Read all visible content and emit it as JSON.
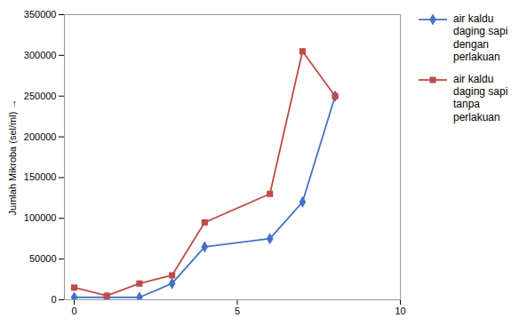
{
  "chart_data": {
    "type": "line",
    "ylabel": "Jumlah Mikroba (sel/ml)",
    "x": [
      0,
      1,
      2,
      3,
      4,
      6,
      7,
      8
    ],
    "series": [
      {
        "name": "air kaldu\ndaging sapi\ndengan\nperlakuan",
        "color": "#4472C4",
        "marker": "diamond",
        "values": [
          3000,
          3000,
          3000,
          20000,
          65000,
          75000,
          120000,
          250000
        ]
      },
      {
        "name": "air kaldu\ndaging sapi\ntanpa\nperlakuan",
        "color": "#BE4B48",
        "marker": "square",
        "values": [
          15000,
          5000,
          20000,
          30000,
          95000,
          130000,
          305000,
          250000
        ]
      }
    ],
    "xlim": [
      -0.3,
      10
    ],
    "xticks": [
      0,
      5,
      10
    ],
    "ylim": [
      0,
      350000
    ],
    "yticks": [
      0,
      50000,
      100000,
      150000,
      200000,
      250000,
      300000,
      350000
    ],
    "grid": false,
    "legend": "right"
  }
}
